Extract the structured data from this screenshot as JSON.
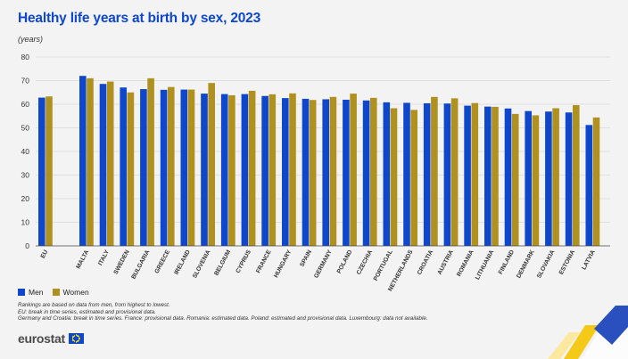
{
  "header": {
    "title": "Healthy life years at birth by sex, 2023",
    "unit": "(years)"
  },
  "colors": {
    "men": "#0e47cb",
    "women": "#b09120",
    "grid": "#d9d9d9",
    "background": "#f3f3f3"
  },
  "chart_data": {
    "type": "bar",
    "title": "Healthy life years at birth by sex, 2023",
    "ylabel": "(years)",
    "xlabel": "",
    "ylim": [
      0,
      80
    ],
    "yticks": [
      "0",
      "10",
      "20",
      "30",
      "40",
      "50",
      "60",
      "70",
      "80"
    ],
    "grid": true,
    "legend_position": "bottom-left",
    "categories": [
      "EU",
      "MALTA",
      "ITALY",
      "SWEDEN",
      "BULGARIA",
      "GREECE",
      "IRELAND",
      "SLOVENIA",
      "BELGIUM",
      "CYPRUS",
      "FRANCE",
      "HUNGARY",
      "SPAIN",
      "GERMANY",
      "POLAND",
      "CZECHIA",
      "PORTUGAL",
      "NETHERLANDS",
      "CROATIA",
      "AUSTRIA",
      "ROMANIA",
      "LITHUANIA",
      "FINLAND",
      "DENMARK",
      "SLOVAKIA",
      "ESTONIA",
      "LATVIA"
    ],
    "series": [
      {
        "name": "Men",
        "values": [
          62.8,
          72.0,
          68.6,
          67.1,
          66.4,
          66.1,
          66.2,
          64.5,
          64.3,
          64.3,
          63.5,
          62.6,
          62.3,
          62.1,
          61.9,
          61.6,
          60.8,
          60.6,
          60.4,
          60.3,
          59.4,
          59.0,
          58.2,
          57.1,
          56.9,
          56.5,
          51.2
        ]
      },
      {
        "name": "Women",
        "values": [
          63.3,
          71.0,
          69.6,
          65.0,
          71.0,
          67.3,
          66.2,
          69.0,
          63.8,
          65.7,
          64.2,
          64.6,
          61.8,
          63.1,
          64.5,
          62.7,
          58.3,
          57.6,
          63.1,
          62.5,
          60.5,
          58.9,
          55.9,
          55.3,
          58.3,
          59.6,
          54.4
        ]
      }
    ]
  },
  "legend": {
    "men": "Men",
    "women": "Women"
  },
  "notes": [
    "Rankings are based on data from men, from highest to lowest.",
    "EU: break in time series, estimated and provisional data.",
    "Germany and Croatia: break in time series. France: provisional data. Romania: estimated data. Poland: estimated and provisional data. Luxembourg: data not available."
  ],
  "logo": {
    "text": "eurostat"
  }
}
